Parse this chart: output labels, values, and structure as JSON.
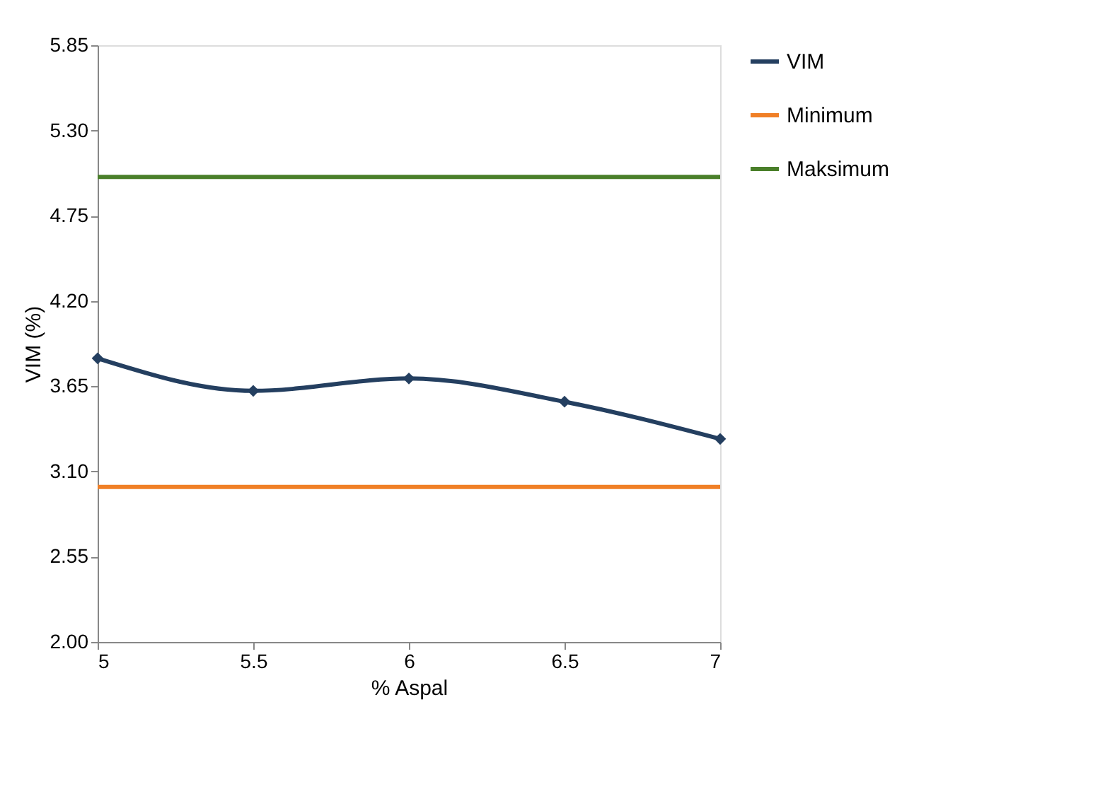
{
  "chart_data": {
    "type": "line",
    "xlabel": "% Aspal",
    "ylabel": "VIM (%)",
    "x": [
      5,
      5.5,
      6,
      6.5,
      7
    ],
    "series": [
      {
        "name": "VIM",
        "color": "#243f60",
        "values": [
          3.83,
          3.62,
          3.7,
          3.55,
          3.31
        ],
        "marker": "diamond"
      },
      {
        "name": "Minimum",
        "color": "#f07f26",
        "values": [
          3.0,
          3.0,
          3.0,
          3.0,
          3.0
        ],
        "marker": "none"
      },
      {
        "name": "Maksimum",
        "color": "#4a7f2a",
        "values": [
          5.0,
          5.0,
          5.0,
          5.0,
          5.0
        ],
        "marker": "none"
      }
    ],
    "xlim": [
      5,
      7
    ],
    "xticks": [
      5,
      5.5,
      6,
      6.5,
      7
    ],
    "ylim": [
      2.0,
      5.85
    ],
    "yticks": [
      {
        "value": 2.0,
        "label": "2.00"
      },
      {
        "value": 2.55,
        "label": "2.55"
      },
      {
        "value": 3.1,
        "label": "3.10"
      },
      {
        "value": 3.65,
        "label": "3.65"
      },
      {
        "value": 4.2,
        "label": "4.20"
      },
      {
        "value": 4.75,
        "label": "4.75"
      },
      {
        "value": 5.3,
        "label": "5.30"
      },
      {
        "value": 5.85,
        "label": "5.85"
      }
    ],
    "grid": false,
    "legend": "right"
  }
}
